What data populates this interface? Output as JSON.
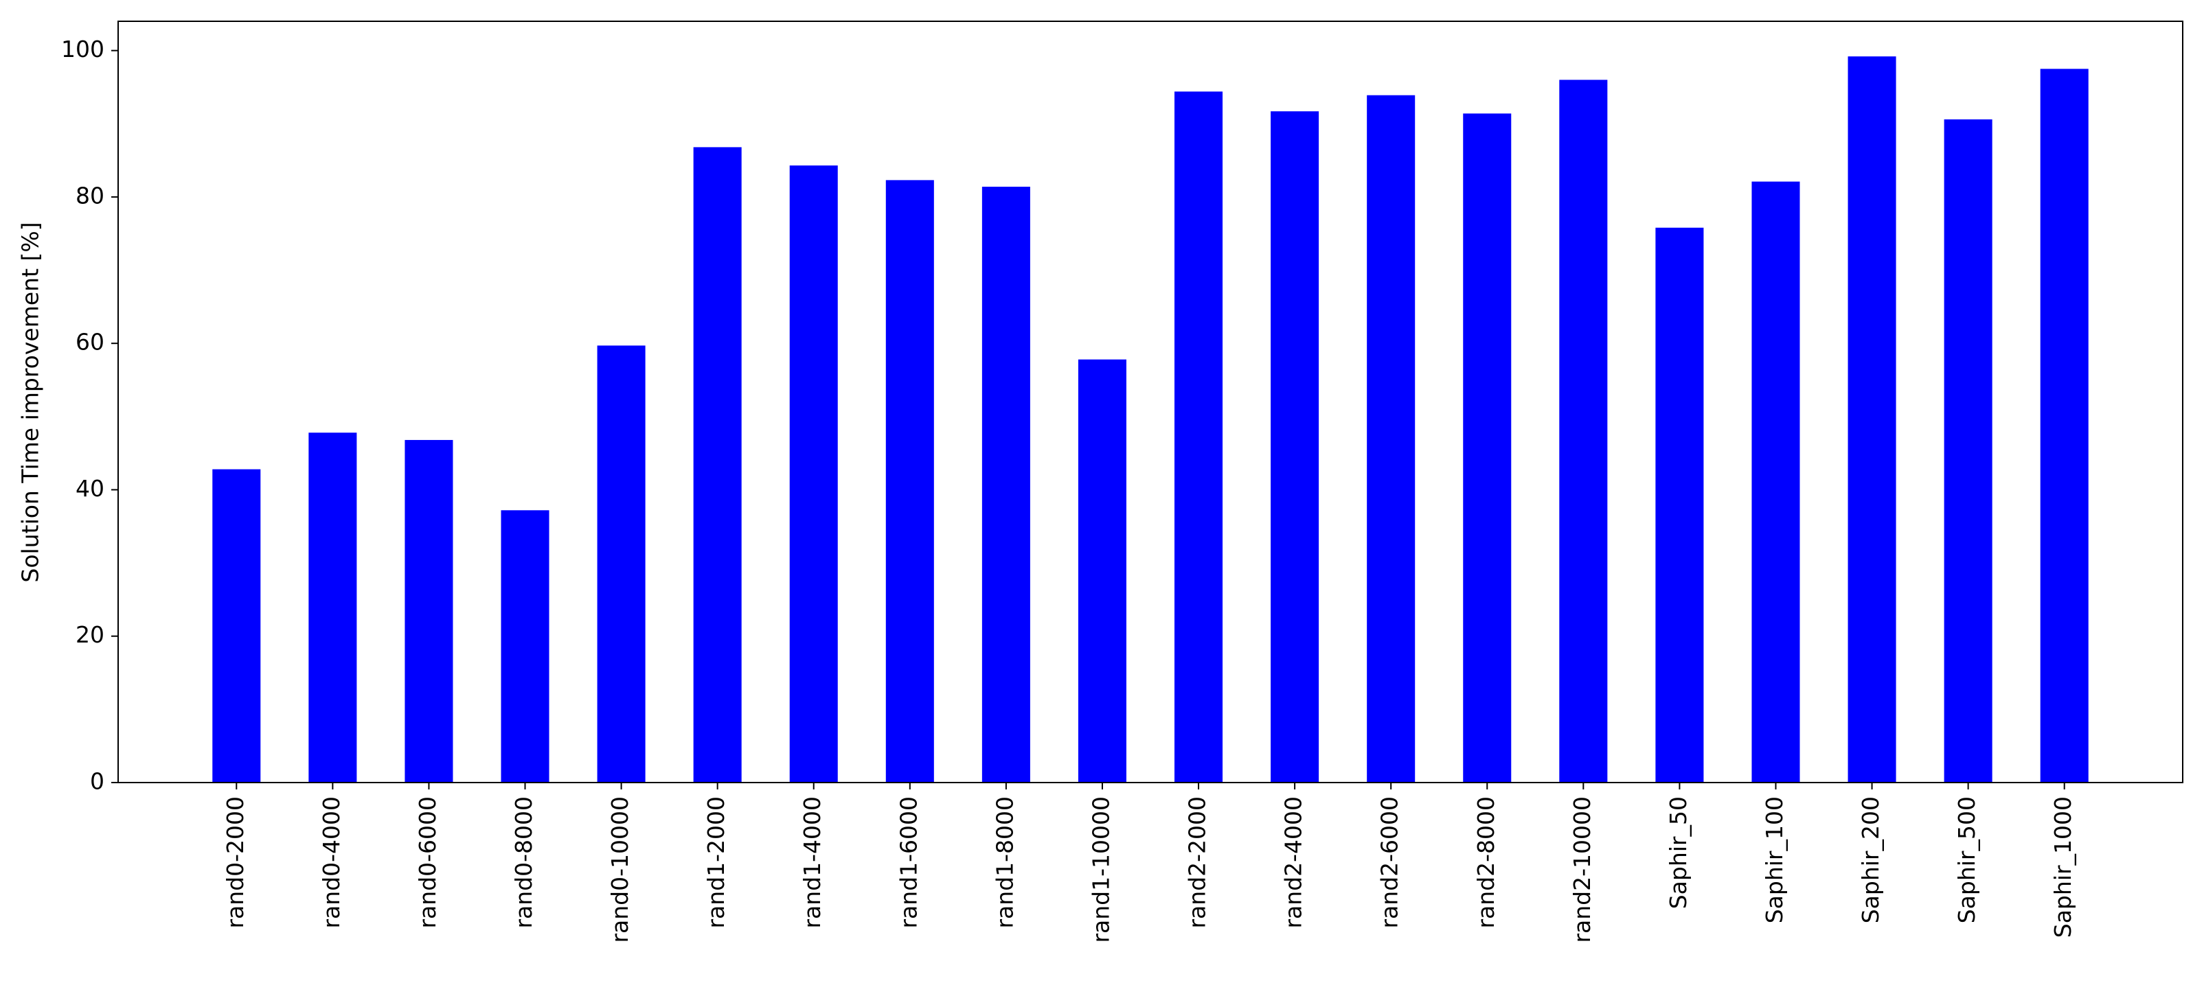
{
  "chart_data": {
    "type": "bar",
    "y_label": "Solution Time improvement [%]",
    "categories": [
      "rand0-2000",
      "rand0-4000",
      "rand0-6000",
      "rand0-8000",
      "rand0-10000",
      "rand1-2000",
      "rand1-4000",
      "rand1-6000",
      "rand1-8000",
      "rand1-10000",
      "rand2-2000",
      "rand2-4000",
      "rand2-6000",
      "rand2-8000",
      "rand2-10000",
      "Saphir_50",
      "Saphir_100",
      "Saphir_200",
      "Saphir_500",
      "Saphir_1000"
    ],
    "values": [
      42.8,
      47.8,
      46.8,
      37.2,
      59.7,
      86.8,
      84.3,
      82.3,
      81.4,
      57.8,
      94.4,
      91.7,
      93.9,
      91.4,
      96.0,
      75.8,
      82.1,
      99.2,
      90.6,
      97.5
    ],
    "color": "#0000ff",
    "ylim": [
      0,
      104
    ],
    "yticks": [
      0,
      20,
      40,
      60,
      80,
      100
    ],
    "grid": false
  }
}
